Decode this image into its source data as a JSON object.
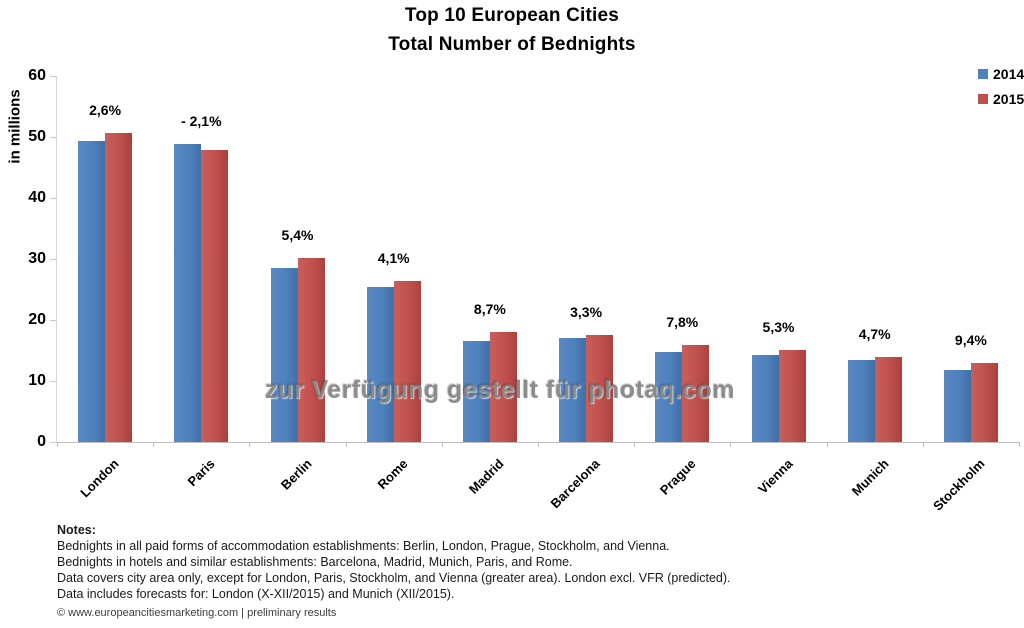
{
  "title": {
    "line1": "Top 10 European Cities",
    "line2": "Total Number of Bednights"
  },
  "legend": {
    "items": [
      {
        "label": "2014",
        "color": "#4F81BD"
      },
      {
        "label": "2015",
        "color": "#C0504D"
      }
    ]
  },
  "colors": {
    "series_2014": "#4F81BD",
    "series_2015": "#C0504D",
    "axis": "#BFBFBF"
  },
  "watermark": "zur Verfügung gestellt für photaq.com",
  "chart_data": {
    "type": "bar",
    "title": "Top 10 European Cities – Total Number of Bednights",
    "ylabel": "in millions",
    "ylim": [
      0,
      60
    ],
    "yticks": [
      0,
      10,
      20,
      30,
      40,
      50,
      60
    ],
    "grid": false,
    "legend_position": "top-right",
    "categories": [
      "London",
      "Paris",
      "Berlin",
      "Rome",
      "Madrid",
      "Barcelona",
      "Prague",
      "Vienna",
      "Munich",
      "Stockholm"
    ],
    "series": [
      {
        "name": "2014",
        "color": "#4F81BD",
        "values": [
          49.3,
          48.9,
          28.6,
          25.4,
          16.5,
          17.0,
          14.7,
          14.3,
          13.4,
          11.8
        ]
      },
      {
        "name": "2015",
        "color": "#C0504D",
        "values": [
          50.6,
          47.9,
          30.2,
          26.4,
          18.0,
          17.6,
          15.9,
          15.1,
          14.0,
          12.9
        ]
      }
    ],
    "change_labels": [
      "2,6%",
      "- 2,1%",
      "5,4%",
      "4,1%",
      "8,7%",
      "3,3%",
      "7,8%",
      "5,3%",
      "4,7%",
      "9,4%"
    ]
  },
  "notes": {
    "heading": "Notes:",
    "lines": [
      "Bednights in all paid forms of accommodation establishments: Berlin, London, Prague, Stockholm, and Vienna.",
      "Bednights in hotels and similar establishments: Barcelona, Madrid, Munich, Paris, and Rome.",
      "Data covers city area only, except for London, Paris, Stockholm, and Vienna (greater area). London excl. VFR (predicted).",
      "Data includes forecasts for: London (X-XII/2015) and Munich (XII/2015)."
    ]
  },
  "footer": "© www.europeancitiesmarketing.com | preliminary results"
}
